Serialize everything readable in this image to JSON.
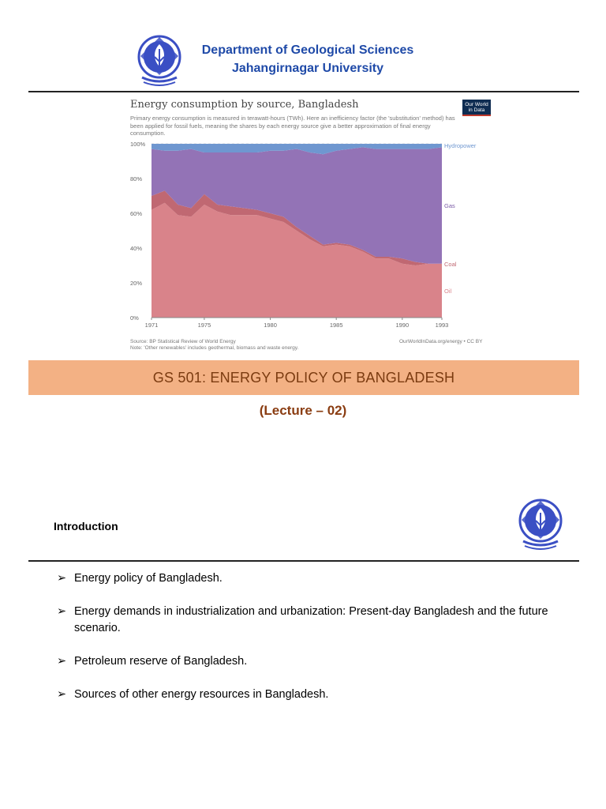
{
  "header": {
    "department": "Department of Geological Sciences",
    "university": "Jahangirnagar University",
    "logo_icon": "university-seal-icon",
    "logo_color": "#3b4fc4"
  },
  "chart": {
    "title": "Energy consumption by source, Bangladesh",
    "subtitle": "Primary energy consumption is measured in terawatt-hours (TWh). Here an inefficiency factor (the 'substitution' method) has been applied for fossil fuels, meaning the shares by each energy source give a better approximation of final energy consumption.",
    "badge": "Our World in Data",
    "source": "Source: BP Statistical Review of World Energy",
    "note": "Note: 'Other renewables' includes geothermal, biomass and waste energy.",
    "credit": "OurWorldInData.org/energy • CC BY"
  },
  "chart_data": {
    "type": "area",
    "stacked": true,
    "title": "Energy consumption by source, Bangladesh",
    "x": [
      1971,
      1972,
      1973,
      1974,
      1975,
      1976,
      1977,
      1978,
      1979,
      1980,
      1981,
      1982,
      1983,
      1984,
      1985,
      1986,
      1987,
      1988,
      1989,
      1990,
      1991,
      1992,
      1993
    ],
    "xticks": [
      "1971",
      "1975",
      "1980",
      "1985",
      "1990",
      "1993"
    ],
    "yticks": [
      "0%",
      "20%",
      "40%",
      "60%",
      "80%",
      "100%"
    ],
    "ylim": [
      0,
      100
    ],
    "series": [
      {
        "name": "Oil",
        "color": "#d9838a",
        "values": [
          62,
          66,
          59,
          58,
          65,
          61,
          59,
          59,
          59,
          57,
          55,
          50,
          45,
          41,
          42,
          41,
          38,
          34,
          34,
          31,
          30,
          31,
          31
        ]
      },
      {
        "name": "Coal",
        "color": "#c06872",
        "values": [
          8,
          7,
          6,
          5,
          6,
          4,
          5,
          4,
          3,
          3,
          3,
          2,
          2,
          1,
          1,
          1,
          1,
          1,
          1,
          3,
          2,
          0,
          0
        ]
      },
      {
        "name": "Gas",
        "color": "#9373b6",
        "values": [
          27,
          23,
          31,
          34,
          24,
          30,
          31,
          32,
          33,
          36,
          38,
          45,
          48,
          52,
          53,
          55,
          59,
          62,
          62,
          63,
          65,
          66,
          67
        ]
      },
      {
        "name": "Hydropower",
        "color": "#6f97d0",
        "values": [
          3,
          4,
          4,
          3,
          5,
          5,
          5,
          5,
          5,
          4,
          4,
          3,
          5,
          6,
          4,
          3,
          2,
          3,
          3,
          3,
          3,
          3,
          2
        ]
      }
    ]
  },
  "course": {
    "title": "GS 501: ENERGY POLICY OF BANGLADESH",
    "lecture": "(Lecture – 02)",
    "banner_color": "#f3b184"
  },
  "intro": {
    "heading": "Introduction",
    "bullet_glyph": "➢",
    "items": [
      "Energy policy of Bangladesh.",
      "Energy demands in industrialization and urbanization: Present-day Bangladesh and the future scenario.",
      "Petroleum reserve of Bangladesh.",
      "Sources of other energy resources in Bangladesh."
    ]
  }
}
